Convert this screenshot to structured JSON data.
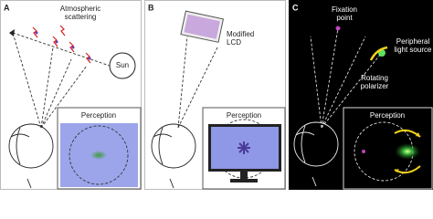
{
  "panels": [
    {
      "label": "A",
      "annotations": [
        {
          "lines": [
            "Atmospheric",
            "scattering"
          ]
        },
        {
          "lines": [
            "Sun"
          ]
        }
      ],
      "inset_title": "Perception"
    },
    {
      "label": "B",
      "annotations": [
        {
          "lines": [
            "Modified",
            "LCD"
          ]
        }
      ],
      "inset_title": "Perception"
    },
    {
      "label": "C",
      "annotations": [
        {
          "lines": [
            "Fixation",
            "point"
          ]
        },
        {
          "lines": [
            "Peripheral",
            "light source"
          ]
        },
        {
          "lines": [
            "Rotating",
            "polarizer"
          ]
        }
      ],
      "inset_title": "Perception"
    }
  ]
}
